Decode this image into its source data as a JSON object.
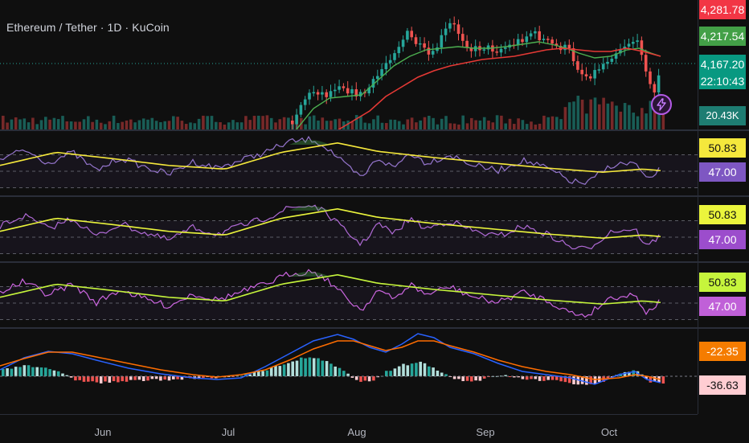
{
  "header": {
    "title": "Ethereum / Tether · 1D · KuCoin"
  },
  "price_scale": {
    "high_tag": "4,281.78",
    "ma_tag": "4,217.54",
    "last_price": "4,167.20",
    "countdown": "22:10:43",
    "volume": "20.43K"
  },
  "osc_panes": [
    {
      "upper_value": "50.83",
      "lower_value": "47.00",
      "upper_color": "#f5e83c",
      "lower_color": "#7e57c2"
    },
    {
      "upper_value": "50.83",
      "lower_value": "47.00",
      "upper_color": "#ebf53c",
      "lower_color": "#9c4dcc"
    },
    {
      "upper_value": "50.83",
      "lower_value": "47.00",
      "upper_color": "#c6f53c",
      "lower_color": "#c060d8"
    }
  ],
  "macd_pane": {
    "upper_value": "-22.35",
    "lower_value": "-36.63"
  },
  "time_axis": {
    "months": [
      "Jun",
      "Jul",
      "Aug",
      "Sep",
      "Oct"
    ]
  },
  "colors": {
    "background": "#0f0f0f",
    "up": "#26a69a",
    "down": "#ef5350",
    "high_tag": "#f23645",
    "ma_tag": "#43a047",
    "price_tag": "#089981",
    "fast_ma": "#4caf50",
    "slow_ma": "#e53935",
    "macd_line": "#2962ff",
    "signal_line": "#ff6d00"
  },
  "icons": {
    "alert": "lightning-icon"
  }
}
